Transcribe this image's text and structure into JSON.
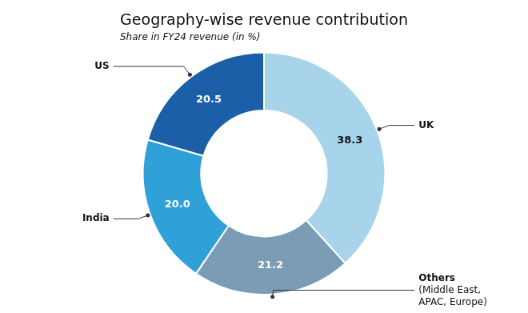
{
  "chart_data": {
    "type": "doughnut",
    "title": "Geography-wise revenue contribution",
    "subtitle": "Share in FY24 revenue (in %)",
    "categories": [
      "UK",
      "Others\n(Middle East,\nAPAC, Europe)",
      "India",
      "US"
    ],
    "values": [
      38.3,
      21.2,
      20.0,
      20.5
    ],
    "value_labels": [
      "38.3",
      "21.2",
      "20.0",
      "20.5"
    ],
    "colors": [
      "#a8d4eb",
      "#7a9db5",
      "#2fa0d8",
      "#1a5fa8"
    ],
    "data_labels": true
  }
}
